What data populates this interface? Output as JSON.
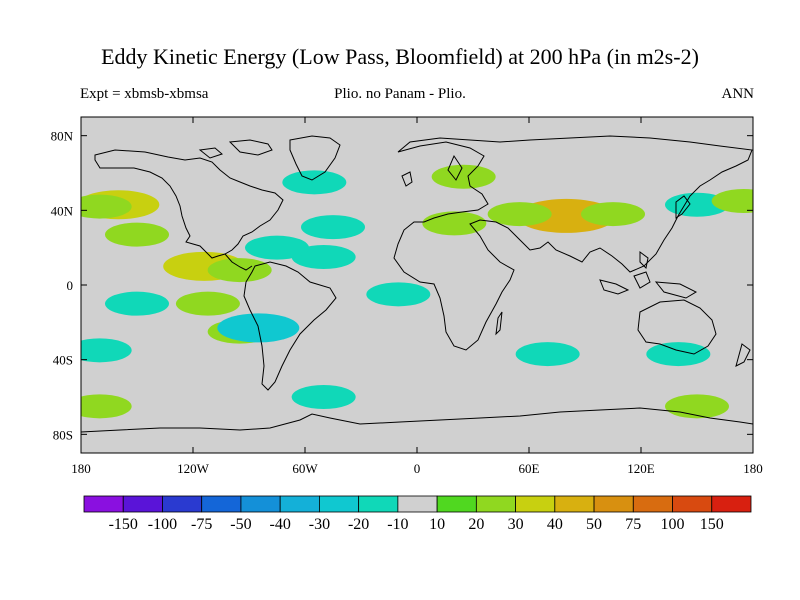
{
  "title": "Eddy Kinetic Energy (Low Pass, Bloomfield) at 200 hPa (in m2s-2)",
  "subtitle_left": "Expt = xbmsb-xbmsa",
  "subtitle_center": "Plio. no Panam - Plio.",
  "subtitle_right": "ANN",
  "map": {
    "background_color": "#d0d0d0",
    "x_ticks": [
      "180",
      "120W",
      "60W",
      "0",
      "60E",
      "120E",
      "180"
    ],
    "y_ticks": [
      "80N",
      "40N",
      "0",
      "40S",
      "80S"
    ],
    "x_range": [
      -180,
      180
    ],
    "y_range": [
      -90,
      90
    ]
  },
  "colorbar": {
    "labels": [
      "-150",
      "-100",
      "-75",
      "-50",
      "-40",
      "-30",
      "-20",
      "-10",
      "10",
      "20",
      "30",
      "40",
      "50",
      "75",
      "100",
      "150"
    ],
    "colors": [
      "#8a10e0",
      "#5a14d8",
      "#2a3ad0",
      "#1466d8",
      "#1490d8",
      "#14b0d8",
      "#10c8d0",
      "#10d8b8",
      "#d0d0d0",
      "#50d820",
      "#90d820",
      "#c8d010",
      "#d8b010",
      "#d89010",
      "#d86c10",
      "#d84a10",
      "#d82010"
    ]
  },
  "chart_data": {
    "type": "heatmap",
    "title": "Eddy Kinetic Energy (Low Pass, Bloomfield) at 200 hPa (in m2s-2)",
    "x_range": [
      -180,
      180
    ],
    "y_range": [
      -90,
      90
    ],
    "levels": [
      -150,
      -100,
      -75,
      -50,
      -40,
      -30,
      -20,
      -10,
      10,
      20,
      30,
      40,
      50,
      75,
      100,
      150
    ],
    "patches": [
      {
        "lon": 80,
        "lat": 37,
        "value": 40
      },
      {
        "lon": 55,
        "lat": 38,
        "value": 20
      },
      {
        "lon": 105,
        "lat": 38,
        "value": 20
      },
      {
        "lon": 20,
        "lat": 33,
        "value": 20
      },
      {
        "lon": -160,
        "lat": 43,
        "value": 30
      },
      {
        "lon": -170,
        "lat": 42,
        "value": 20
      },
      {
        "lon": -150,
        "lat": 27,
        "value": 20
      },
      {
        "lon": -114,
        "lat": 10,
        "value": 30
      },
      {
        "lon": -95,
        "lat": 8,
        "value": 20
      },
      {
        "lon": -112,
        "lat": -10,
        "value": 20
      },
      {
        "lon": -95,
        "lat": -25,
        "value": 20
      },
      {
        "lon": -85,
        "lat": -23,
        "value": -30
      },
      {
        "lon": -10,
        "lat": -5,
        "value": -20
      },
      {
        "lon": -50,
        "lat": 15,
        "value": -20
      },
      {
        "lon": -45,
        "lat": 31,
        "value": -20
      },
      {
        "lon": -75,
        "lat": 20,
        "value": -20
      },
      {
        "lon": 70,
        "lat": -37,
        "value": -20
      },
      {
        "lon": 140,
        "lat": -37,
        "value": -20
      },
      {
        "lon": 150,
        "lat": 43,
        "value": -20
      },
      {
        "lon": 175,
        "lat": 45,
        "value": 20
      },
      {
        "lon": 25,
        "lat": 58,
        "value": 20
      },
      {
        "lon": -55,
        "lat": 55,
        "value": -20
      },
      {
        "lon": 150,
        "lat": -65,
        "value": 20
      },
      {
        "lon": -50,
        "lat": -60,
        "value": -20
      },
      {
        "lon": -150,
        "lat": -10,
        "value": -20
      },
      {
        "lon": -170,
        "lat": -35,
        "value": -20
      },
      {
        "lon": -170,
        "lat": -65,
        "value": 20
      }
    ]
  }
}
